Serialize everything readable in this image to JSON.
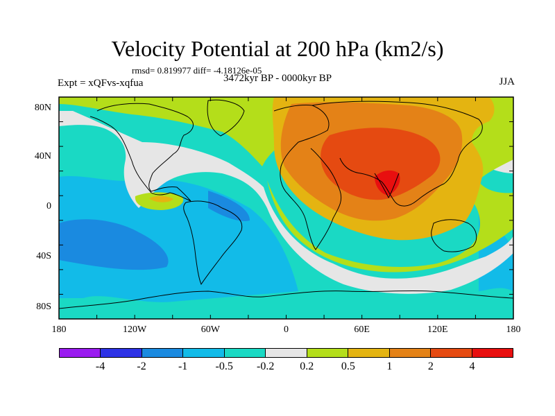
{
  "title": "Velocity Potential at 200 hPa (km2/s)",
  "stats": "rmsd= 0.819977 diff= -4.18126e-05",
  "experiment": "Expt = xQFvs-xqfua",
  "period": "3472kyr BP - 0000kyr BP",
  "season": "JJA",
  "lat_labels": [
    "80N",
    "40N",
    "0",
    "40S",
    "80S"
  ],
  "lon_labels": [
    "180",
    "120W",
    "60W",
    "0",
    "60E",
    "120E",
    "180"
  ],
  "colorbar": {
    "colors": [
      "#9a1bf0",
      "#2d32e6",
      "#1a8ae0",
      "#12bbe8",
      "#1ad9c4",
      "#e6e6e6",
      "#b4de1a",
      "#e4b411",
      "#e48217",
      "#e54a11",
      "#e80f0f"
    ],
    "labels": [
      "-4",
      "-2",
      "-1",
      "-0.5",
      "-0.2",
      "0.2",
      "0.5",
      "1",
      "2",
      "4"
    ]
  },
  "map_colors": {
    "m1": "#1a8ae0",
    "m05": "#12bbe8",
    "m02": "#1ad9c4",
    "zero": "#e6e6e6",
    "p02": "#b4de1a",
    "p05": "#e4b411",
    "p1": "#e48217",
    "p2": "#e54a11",
    "p4": "#e80f0f"
  }
}
